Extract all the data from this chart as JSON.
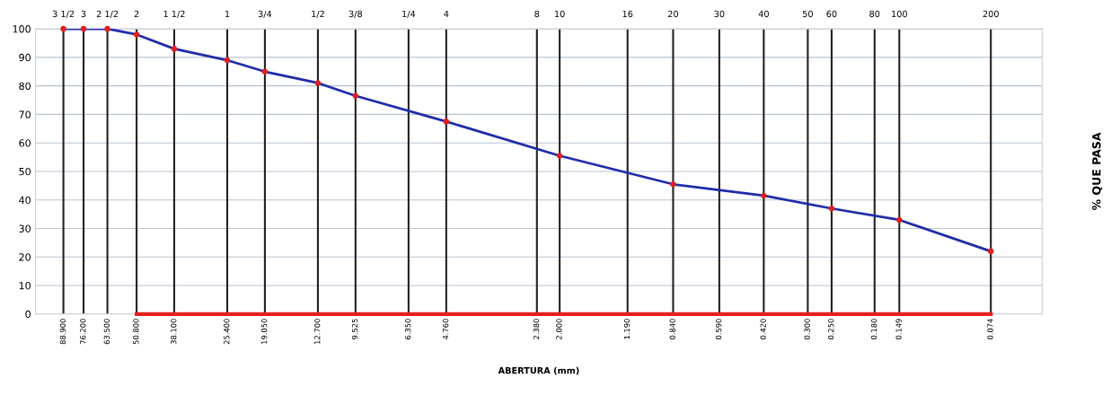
{
  "chart_data": {
    "type": "line",
    "xlabel": "ABERTURA (mm)",
    "ylabel": "% QUE PASA",
    "log": "x",
    "grid": "y",
    "marker": "circle",
    "line_style": "solid",
    "xlim": [
      110,
      0.05
    ],
    "ylim": [
      0,
      100
    ],
    "yticks": [
      0,
      10,
      20,
      30,
      40,
      50,
      60,
      70,
      80,
      90,
      100
    ],
    "xticks": [
      {
        "value": 88.9,
        "label": "88.900"
      },
      {
        "value": 76.2,
        "label": "76.200"
      },
      {
        "value": 63.5,
        "label": "63.500"
      },
      {
        "value": 50.8,
        "label": "50.800"
      },
      {
        "value": 38.1,
        "label": "38.100"
      },
      {
        "value": 25.4,
        "label": "25.400"
      },
      {
        "value": 19.05,
        "label": "19.050"
      },
      {
        "value": 12.7,
        "label": "12.700"
      },
      {
        "value": 9.525,
        "label": "9.525"
      },
      {
        "value": 6.35,
        "label": "6.350"
      },
      {
        "value": 4.76,
        "label": "4.760"
      },
      {
        "value": 2.38,
        "label": "2.380"
      },
      {
        "value": 2.0,
        "label": "2.000"
      },
      {
        "value": 1.19,
        "label": "1.190"
      },
      {
        "value": 0.84,
        "label": "0.840"
      },
      {
        "value": 0.59,
        "label": "0.590"
      },
      {
        "value": 0.42,
        "label": "0.420"
      },
      {
        "value": 0.3,
        "label": "0.300"
      },
      {
        "value": 0.25,
        "label": "0.250"
      },
      {
        "value": 0.18,
        "label": "0.180"
      },
      {
        "value": 0.149,
        "label": "0.149"
      },
      {
        "value": 0.074,
        "label": "0.074"
      }
    ],
    "ref_lines": [
      {
        "axis": "x",
        "value": 88.9
      },
      {
        "axis": "x",
        "value": 76.2
      },
      {
        "axis": "x",
        "value": 63.5
      },
      {
        "axis": "x",
        "value": 50.8
      },
      {
        "axis": "x",
        "value": 38.1
      },
      {
        "axis": "x",
        "value": 25.4
      },
      {
        "axis": "x",
        "value": 19.05
      },
      {
        "axis": "x",
        "value": 12.7
      },
      {
        "axis": "x",
        "value": 9.525
      },
      {
        "axis": "x",
        "value": 6.35
      },
      {
        "axis": "x",
        "value": 4.76
      },
      {
        "axis": "x",
        "value": 2.38
      },
      {
        "axis": "x",
        "value": 2.0
      },
      {
        "axis": "x",
        "value": 1.19
      },
      {
        "axis": "x",
        "value": 0.84
      },
      {
        "axis": "x",
        "value": 0.59
      },
      {
        "axis": "x",
        "value": 0.42
      },
      {
        "axis": "x",
        "value": 0.3
      },
      {
        "axis": "x",
        "value": 0.25
      },
      {
        "axis": "x",
        "value": 0.18
      },
      {
        "axis": "x",
        "value": 0.149
      },
      {
        "axis": "x",
        "value": 0.074
      }
    ],
    "annotations": [
      {
        "text": "3 1/2",
        "x": 88.9,
        "y": 100
      },
      {
        "text": "3",
        "x": 76.2,
        "y": 100
      },
      {
        "text": "2 1/2",
        "x": 63.5,
        "y": 100
      },
      {
        "text": "2",
        "x": 50.8,
        "y": 100
      },
      {
        "text": "1 1/2",
        "x": 38.1,
        "y": 100
      },
      {
        "text": "1",
        "x": 25.4,
        "y": 100
      },
      {
        "text": "3/4",
        "x": 19.05,
        "y": 100
      },
      {
        "text": "1/2",
        "x": 12.7,
        "y": 100
      },
      {
        "text": "3/8",
        "x": 9.525,
        "y": 100
      },
      {
        "text": "1/4",
        "x": 6.35,
        "y": 100
      },
      {
        "text": "4",
        "x": 4.76,
        "y": 100
      },
      {
        "text": "8",
        "x": 2.38,
        "y": 100
      },
      {
        "text": "10",
        "x": 2.0,
        "y": 100
      },
      {
        "text": "16",
        "x": 1.19,
        "y": 100
      },
      {
        "text": "20",
        "x": 0.84,
        "y": 100
      },
      {
        "text": "30",
        "x": 0.59,
        "y": 100
      },
      {
        "text": "40",
        "x": 0.42,
        "y": 100
      },
      {
        "text": "50",
        "x": 0.3,
        "y": 100
      },
      {
        "text": "60",
        "x": 0.25,
        "y": 100
      },
      {
        "text": "80",
        "x": 0.18,
        "y": 100
      },
      {
        "text": "100",
        "x": 0.149,
        "y": 100
      },
      {
        "text": "200",
        "x": 0.074,
        "y": 100
      }
    ],
    "series": [
      {
        "color": "#1f2ca8",
        "colors": [
          "#e02020",
          "#e02020",
          "#e02020",
          "#e02020",
          "#e02020",
          "#e02020",
          "#e02020",
          "#e02020",
          "#e02020",
          "#e02020",
          "#e02020",
          "#e02020",
          "#e02020",
          "#e02020",
          "#e02020",
          "#e02020"
        ],
        "x": [
          88.9,
          76.2,
          63.5,
          50.8,
          38.1,
          25.4,
          19.05,
          12.7,
          9.525,
          4.76,
          2.0,
          0.84,
          0.42,
          0.25,
          0.149,
          0.074
        ],
        "values": [
          100,
          100,
          100,
          98,
          93,
          89,
          85,
          81,
          76.5,
          67.5,
          55.5,
          45.5,
          41.5,
          37,
          33,
          22
        ]
      },
      {
        "color": "#e8201c",
        "marker": "none",
        "x": [
          50.8,
          38.1,
          25.4,
          19.05,
          12.7,
          9.525,
          6.35,
          4.76,
          2.38,
          2.0,
          1.19,
          0.84,
          0.59,
          0.42,
          0.3,
          0.25,
          0.18,
          0.149,
          0.074
        ],
        "values": [
          0,
          0,
          0,
          0,
          0,
          0,
          0,
          0,
          0,
          0,
          0,
          0,
          0,
          0,
          0,
          0,
          0,
          0,
          0
        ]
      }
    ]
  }
}
